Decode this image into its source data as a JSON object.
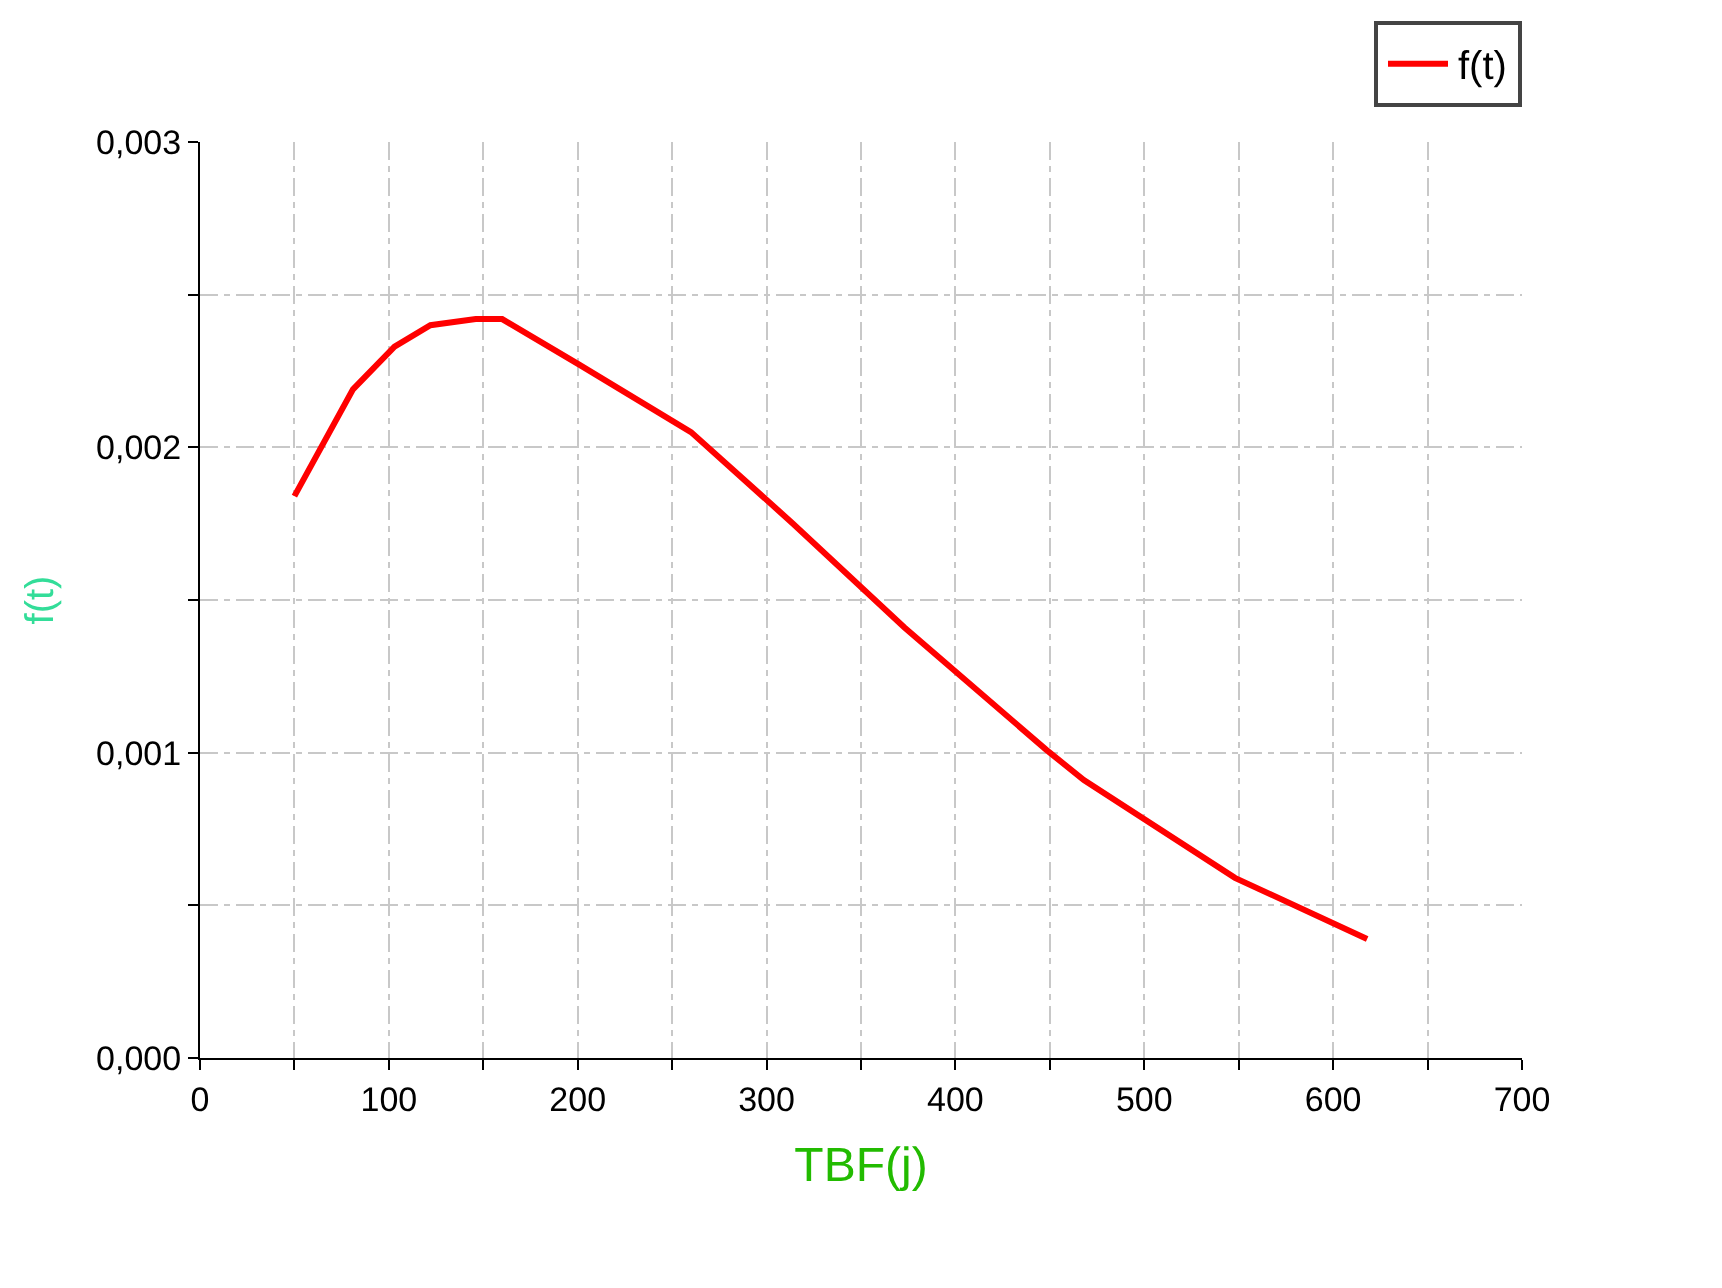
{
  "chart_data": {
    "type": "line",
    "xlabel": "TBF(j)",
    "ylabel": "f(t)",
    "x": [
      50,
      81,
      103,
      122,
      146,
      160,
      201,
      260,
      314,
      373,
      448,
      468,
      548,
      618
    ],
    "series": [
      {
        "name": "f(t)",
        "color": "#ff0000",
        "values": [
          0.00184,
          0.00219,
          0.00233,
          0.0024,
          0.00242,
          0.00242,
          0.00227,
          0.00205,
          0.00175,
          0.00141,
          0.00101,
          0.00091,
          0.00059,
          0.00039
        ]
      }
    ],
    "xlim": [
      0,
      700
    ],
    "xticks": [
      0,
      {
        "value": 50,
        "label": null
      },
      100,
      {
        "value": 150,
        "label": null
      },
      200,
      {
        "value": 250,
        "label": null
      },
      300,
      {
        "value": 350,
        "label": null
      },
      400,
      {
        "value": 450,
        "label": null
      },
      500,
      {
        "value": 550,
        "label": null
      },
      600,
      {
        "value": 650,
        "label": null
      },
      700
    ],
    "ylim": [
      0,
      0.003
    ],
    "yticks": [
      {
        "value": 0,
        "label": "0,000"
      },
      {
        "value": 0.0005,
        "label": null
      },
      {
        "value": 0.001,
        "label": "0,001"
      },
      {
        "value": 0.0015,
        "label": null
      },
      {
        "value": 0.002,
        "label": "0,002"
      },
      {
        "value": 0.0025,
        "label": null
      },
      {
        "value": 0.003,
        "label": "0,003"
      }
    ],
    "grid": true,
    "legend": "top right",
    "marker": "none",
    "line_style": "solid"
  }
}
